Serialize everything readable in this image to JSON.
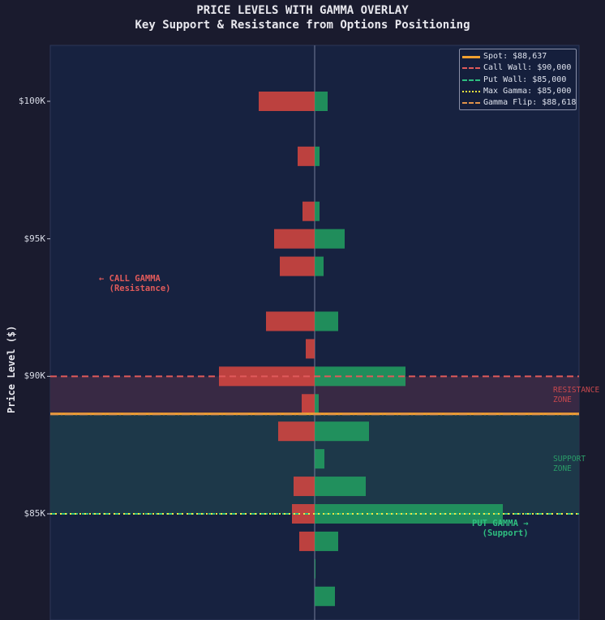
{
  "chart_data": {
    "type": "bar",
    "orientation": "horizontal-diverging",
    "title": "PRICE LEVELS WITH GAMMA OVERLAY",
    "subtitle": "Key Support & Resistance from Options Positioning",
    "xlabel": "",
    "ylabel": "Price Level ($)",
    "ylim": [
      81000,
      102000
    ],
    "xlim": [
      -326,
      326
    ],
    "grid": false,
    "yticks": [
      {
        "value": 100000,
        "label": "$100K"
      },
      {
        "value": 95000,
        "label": "$95K"
      },
      {
        "value": 90000,
        "label": "$90K"
      },
      {
        "value": 85000,
        "label": "$85K"
      }
    ],
    "categories": [
      100000,
      98000,
      96000,
      95000,
      94000,
      92000,
      91000,
      90000,
      89000,
      88000,
      87000,
      86000,
      85000,
      84000,
      83000,
      82000
    ],
    "series": [
      {
        "name": "Call Gamma",
        "color": "#d9473f",
        "values": [
          -69,
          -21,
          -15,
          -50,
          -43,
          -60,
          -11,
          -118,
          -16,
          -45,
          0,
          -26,
          -28,
          -19,
          0,
          0
        ]
      },
      {
        "name": "Put Gamma",
        "color": "#22a060",
        "values": [
          16,
          6,
          6,
          37,
          11,
          29,
          0,
          112,
          5,
          67,
          12,
          63,
          232,
          29,
          1,
          25
        ]
      }
    ],
    "levels": [
      {
        "name": "Spot",
        "label": "Spot: $88,637",
        "value": 88637,
        "color": "#f0a030",
        "style": "solid"
      },
      {
        "name": "Call Wall",
        "label": "Call Wall: $90,000",
        "value": 90000,
        "color": "#e05a5a",
        "style": "dashed"
      },
      {
        "name": "Put Wall",
        "label": "Put Wall: $85,000",
        "value": 85000,
        "color": "#2fbf80",
        "style": "dashed"
      },
      {
        "name": "Max Gamma",
        "label": "Max Gamma: $85,000",
        "value": 85000,
        "color": "#f2e640",
        "style": "dotted"
      },
      {
        "name": "Gamma Flip",
        "label": "Gamma Flip: $88,618",
        "value": 88618,
        "color": "#e0934a",
        "style": "dashdot"
      }
    ],
    "zones": [
      {
        "name": "Resistance Zone",
        "label": "RESISTANCE\nZONE",
        "from": 88637,
        "to": 90000,
        "color": "#3a2a45"
      },
      {
        "name": "Support Zone",
        "label": "SUPPORT\nZONE",
        "from": 85000,
        "to": 88637,
        "color": "#1d3a4a"
      }
    ],
    "annotations": [
      {
        "text": "← CALL GAMMA\n  (Resistance)",
        "color": "#e05a5a"
      },
      {
        "text": "PUT GAMMA →\n  (Support)",
        "color": "#2fbf80"
      }
    ],
    "legend_position": "top-right"
  }
}
